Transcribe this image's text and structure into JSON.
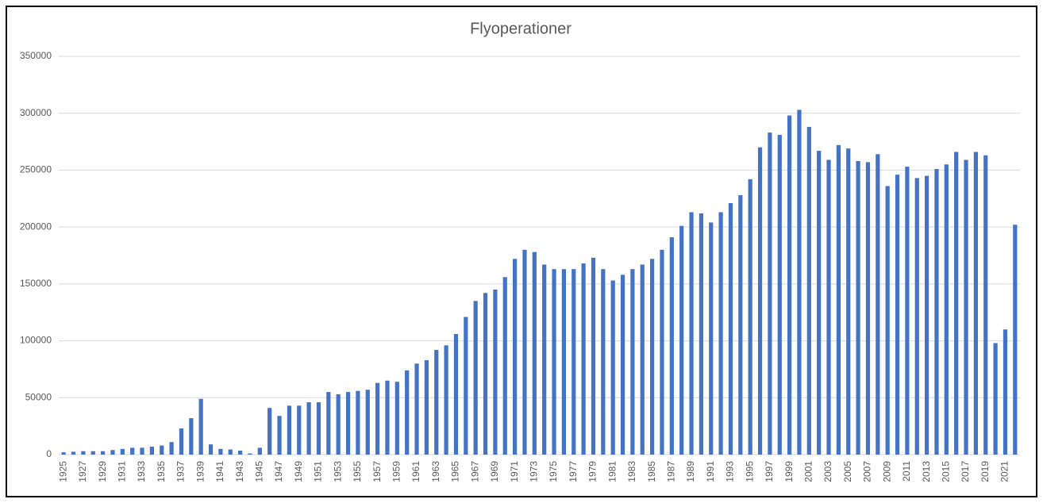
{
  "chart_data": {
    "type": "bar",
    "title": "Flyoperationer",
    "categories": [
      "1925",
      null,
      "1927",
      null,
      "1929",
      null,
      "1931",
      null,
      "1933",
      null,
      "1935",
      null,
      "1937",
      null,
      "1939",
      null,
      "1941",
      null,
      "1943",
      null,
      "1945",
      null,
      "1947",
      null,
      "1949",
      null,
      "1951",
      null,
      "1953",
      null,
      "1955",
      null,
      "1957",
      null,
      "1959",
      null,
      "1961",
      null,
      "1963",
      null,
      "1965",
      null,
      "1967",
      null,
      "1969",
      null,
      "1971",
      null,
      "1973",
      null,
      "1975",
      null,
      "1977",
      null,
      "1979",
      null,
      "1981",
      null,
      "1983",
      null,
      "1985",
      null,
      "1987",
      null,
      "1989",
      null,
      "1991",
      null,
      "1993",
      null,
      "1995",
      null,
      "1997",
      null,
      "1999",
      null,
      "2001",
      null,
      "2003",
      null,
      "2005",
      null,
      "2007",
      null,
      "2009",
      null,
      "2011",
      null,
      "2013",
      null,
      "2015",
      null,
      "2017",
      null,
      "2019",
      null,
      "2021",
      null
    ],
    "values": [
      2000,
      2500,
      3000,
      3000,
      3000,
      4000,
      5000,
      6000,
      6000,
      7000,
      8000,
      11000,
      23000,
      32000,
      49000,
      9000,
      5000,
      4500,
      3500,
      1000,
      6000,
      41000,
      34000,
      43000,
      43000,
      46000,
      46000,
      55000,
      53000,
      55000,
      56000,
      57000,
      63000,
      65000,
      64000,
      74000,
      80000,
      83000,
      92000,
      96000,
      106000,
      121000,
      135000,
      142000,
      145000,
      156000,
      172000,
      180000,
      178000,
      167000,
      163000,
      163000,
      163000,
      168000,
      173000,
      163000,
      153000,
      158000,
      163000,
      167000,
      172000,
      180000,
      191000,
      201000,
      213000,
      212000,
      204000,
      213000,
      221000,
      228000,
      242000,
      270000,
      283000,
      281000,
      298000,
      303000,
      288000,
      267000,
      259000,
      272000,
      269000,
      258000,
      257000,
      264000,
      236000,
      246000,
      253000,
      243000,
      245000,
      251000,
      255000,
      266000,
      259000,
      266000,
      263000,
      98000,
      110000,
      202000
    ],
    "color": "#4472c4",
    "ylim": [
      0,
      350000
    ],
    "yticks": [
      0,
      50000,
      100000,
      150000,
      200000,
      250000,
      300000,
      350000
    ],
    "grid": true
  }
}
